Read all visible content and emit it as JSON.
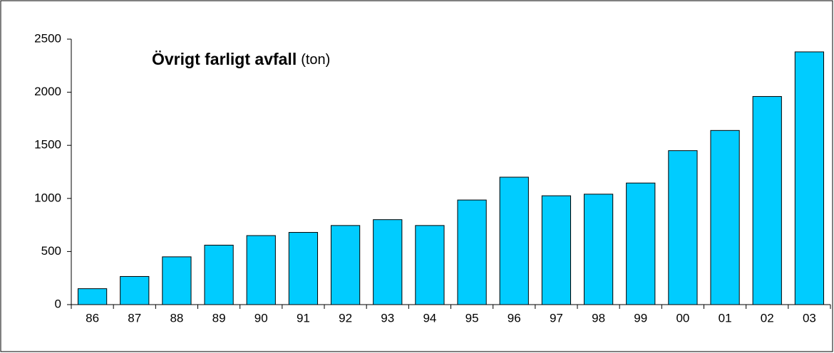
{
  "chart_data": {
    "type": "bar",
    "title": "Övrigt farligt avfall",
    "unit": "(ton)",
    "categories": [
      "86",
      "87",
      "88",
      "89",
      "90",
      "91",
      "92",
      "93",
      "94",
      "95",
      "96",
      "97",
      "98",
      "99",
      "00",
      "01",
      "02",
      "03"
    ],
    "values": [
      150,
      265,
      450,
      560,
      650,
      680,
      745,
      800,
      745,
      985,
      1200,
      1025,
      1040,
      1145,
      1450,
      1640,
      1960,
      2380
    ],
    "color": "#00ccff",
    "ylim": [
      0,
      2500
    ],
    "yticks": [
      0,
      500,
      1000,
      1500,
      2000,
      2500
    ],
    "grid": false
  }
}
